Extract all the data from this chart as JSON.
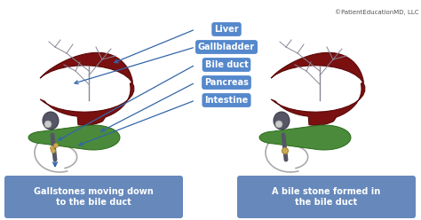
{
  "bg_color": "#ffffff",
  "label_bg": "#5588cc",
  "label_text_color": "#ffffff",
  "labels": [
    "Liver",
    "Gallbladder",
    "Bile duct",
    "Pancreas",
    "Intestine"
  ],
  "caption_bg": "#6688bb",
  "caption_text_color": "#ffffff",
  "caption1": "Gallstones moving down\nto the bile duct",
  "caption2": "A bile stone formed in\nthe bile duct",
  "copyright": "©PatientEducationMD, LLC",
  "liver_color": "#7a1010",
  "liver_edge": "#5a0808",
  "gallbladder_color": "#555566",
  "duct_color": "#555566",
  "pancreas_color": "#4a8a3a",
  "arrow_color": "#3366aa",
  "tree_color": "#888899",
  "intestine_color": "#aaaaaa",
  "stone_color": "#ccaa55"
}
